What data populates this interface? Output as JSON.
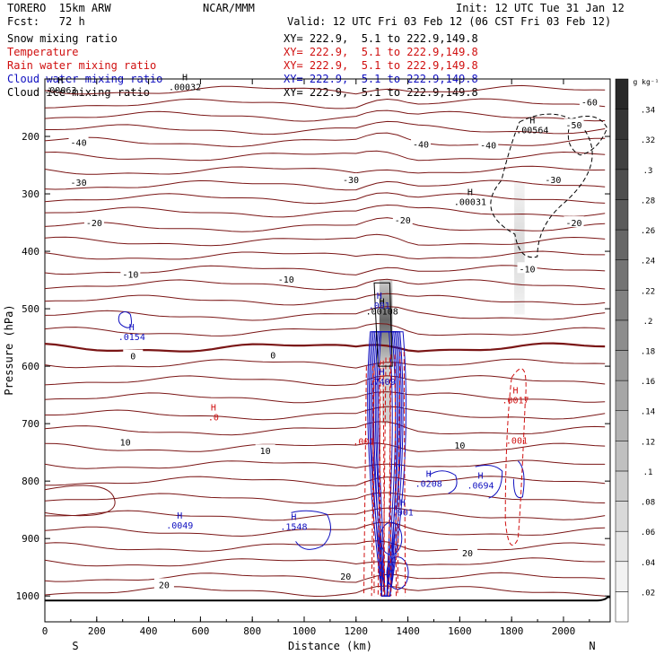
{
  "header": {
    "model": "TORERO  15km ARW",
    "org": "NCAR/MMM",
    "init": "Init: 12 UTC Tue 31 Jan 12",
    "fcst": "Fcst:   72 h",
    "valid": "Valid: 12 UTC Fri 03 Feb 12 (06 CST Fri 03 Feb 12)"
  },
  "legend": [
    {
      "field": "Snow mixing ratio",
      "xy": "XY= 222.9,  5.1 to 222.9,149.8",
      "color": "#000000"
    },
    {
      "field": "Temperature",
      "xy": "XY= 222.9,  5.1 to 222.9,149.8",
      "color": "#d01010"
    },
    {
      "field": "Rain water mixing ratio",
      "xy": "XY= 222.9,  5.1 to 222.9,149.8",
      "color": "#d01010"
    },
    {
      "field": "Cloud water mixing ratio",
      "xy": "XY= 222.9,  5.1 to 222.9,149.8",
      "color": "#1010c0"
    },
    {
      "field": "Cloud ice mixing ratio",
      "xy": "XY= 222.9,  5.1 to 222.9,149.8",
      "color": "#000000"
    }
  ],
  "chart_data": {
    "type": "contour-cross-section",
    "xlabel": "Distance (km)",
    "ylabel": "Pressure (hPa)",
    "xlim": [
      0,
      2180
    ],
    "ylim": [
      1045,
      100
    ],
    "x_ticks": [
      0,
      200,
      400,
      600,
      800,
      1000,
      1200,
      1400,
      1600,
      1800,
      2000
    ],
    "x_tick_labels": [
      "0",
      "200",
      "400",
      "600",
      "800",
      "1000",
      "1200",
      "1400",
      "1600",
      "1800",
      "2000"
    ],
    "y_ticks": [
      200,
      300,
      400,
      500,
      600,
      700,
      800,
      900,
      1000
    ],
    "y_tick_labels": [
      "200",
      "300",
      "400",
      "500",
      "600",
      "700",
      "800",
      "900",
      "1000"
    ],
    "x_end_labels": {
      "left": "S",
      "right": "N"
    },
    "colorbar": {
      "unit": "g kg⁻¹",
      "levels": [
        0.02,
        0.04,
        0.06,
        0.08,
        0.1,
        0.12,
        0.14,
        0.16,
        0.18,
        0.2,
        0.22,
        0.24,
        0.26,
        0.28,
        0.3,
        0.32,
        0.34
      ],
      "labels": [
        ".02",
        ".04",
        ".06",
        ".08",
        ".1",
        ".12",
        ".14",
        ".16",
        ".18",
        ".2",
        ".22",
        ".24",
        ".26",
        ".28",
        ".3",
        ".32",
        ".34"
      ]
    },
    "temperature_labels": [
      {
        "text": "-60",
        "x": 2100,
        "p": 140
      },
      {
        "text": "-50",
        "x": 2040,
        "p": 180
      },
      {
        "text": "-40",
        "x": 130,
        "p": 210
      },
      {
        "text": "-40",
        "x": 1450,
        "p": 213
      },
      {
        "text": "-40",
        "x": 1710,
        "p": 215
      },
      {
        "text": "-30",
        "x": 130,
        "p": 280
      },
      {
        "text": "-30",
        "x": 1180,
        "p": 275
      },
      {
        "text": "-30",
        "x": 1960,
        "p": 275
      },
      {
        "text": "-20",
        "x": 190,
        "p": 350
      },
      {
        "text": "-20",
        "x": 1380,
        "p": 345
      },
      {
        "text": "-20",
        "x": 2040,
        "p": 350
      },
      {
        "text": "-10",
        "x": 330,
        "p": 440
      },
      {
        "text": "-10",
        "x": 930,
        "p": 448
      },
      {
        "text": "-10",
        "x": 1860,
        "p": 430
      },
      {
        "text": "0",
        "x": 340,
        "p": 582
      },
      {
        "text": "0",
        "x": 880,
        "p": 580
      },
      {
        "text": "10",
        "x": 310,
        "p": 732
      },
      {
        "text": "10",
        "x": 850,
        "p": 747
      },
      {
        "text": "10",
        "x": 1600,
        "p": 737
      },
      {
        "text": "20",
        "x": 460,
        "p": 980
      },
      {
        "text": "20",
        "x": 1160,
        "p": 965
      },
      {
        "text": "20",
        "x": 1630,
        "p": 925
      }
    ],
    "maxima": [
      {
        "symbol": "H",
        "value": ".00063",
        "x": 60,
        "p": 120,
        "color": "#000000"
      },
      {
        "symbol": "H",
        "value": ".00032",
        "x": 540,
        "p": 115,
        "color": "#000000"
      },
      {
        "symbol": "H",
        "value": ".00031",
        "x": 1640,
        "p": 315,
        "color": "#000000"
      },
      {
        "symbol": "H",
        "value": ".00564",
        "x": 1880,
        "p": 190,
        "color": "#000000"
      },
      {
        "symbol": "H",
        "value": ".00108",
        "x": 1300,
        "p": 505,
        "color": "#000000"
      },
      {
        "symbol": "H",
        "value": ".0154",
        "x": 335,
        "p": 550,
        "color": "#1010c0"
      },
      {
        "symbol": "H",
        "value": ".001",
        "x": 1290,
        "p": 495,
        "color": "#1010c0"
      },
      {
        "symbol": "H",
        "value": ".7409",
        "x": 1300,
        "p": 628,
        "color": "#1010c0"
      },
      {
        "symbol": "H",
        "value": ".0208",
        "x": 1480,
        "p": 805,
        "color": "#1010c0"
      },
      {
        "symbol": "H",
        "value": ".0694",
        "x": 1680,
        "p": 808,
        "color": "#1010c0"
      },
      {
        "symbol": "H",
        "value": ".0049",
        "x": 520,
        "p": 878,
        "color": "#1010c0"
      },
      {
        "symbol": "H",
        "value": ".1548",
        "x": 960,
        "p": 880,
        "color": "#1010c0"
      },
      {
        "symbol": "H",
        "value": ".001",
        "x": 1380,
        "p": 855,
        "color": "#1010c0"
      },
      {
        "symbol": "H",
        "value": ".0017",
        "x": 1815,
        "p": 660,
        "color": "#d01010"
      },
      {
        "symbol": "H",
        "value": ".0",
        "x": 650,
        "p": 690,
        "color": "#d01010"
      },
      {
        "symbol": "",
        "value": ".001",
        "x": 1820,
        "p": 730,
        "color": "#d01010"
      },
      {
        "symbol": "",
        "value": ".001",
        "x": 1230,
        "p": 732,
        "color": "#d01010"
      }
    ]
  }
}
